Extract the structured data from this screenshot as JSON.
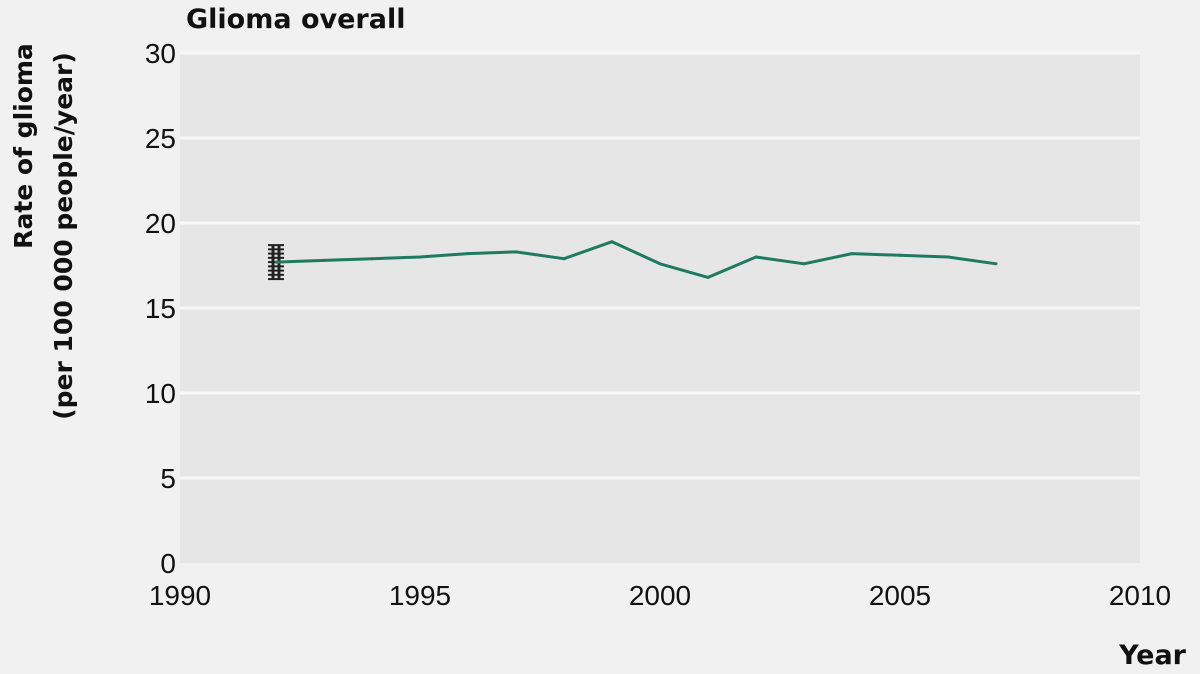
{
  "chart_data": {
    "type": "line",
    "title": "Glioma overall",
    "xlabel": "Year",
    "ylabel_line1": "Rate of glioma",
    "ylabel_line2": "(per 100 000 people/year)",
    "xlim": [
      1990,
      2010
    ],
    "ylim": [
      0,
      30
    ],
    "xticks": [
      "1990",
      "1995",
      "2000",
      "2005",
      "2010"
    ],
    "yticks": [
      "0",
      "5",
      "10",
      "15",
      "20",
      "25",
      "30"
    ],
    "grid": true,
    "series": [
      {
        "x": [
          1992,
          1993,
          1994,
          1995,
          1996,
          1997,
          1998,
          1999,
          2000,
          2001,
          2002,
          2003,
          2004,
          2005,
          2006,
          2007
        ],
        "y": [
          17.7,
          17.8,
          17.9,
          18.0,
          18.2,
          18.3,
          17.9,
          18.9,
          17.6,
          16.8,
          18.0,
          17.6,
          18.2,
          18.1,
          18.0,
          17.6
        ]
      }
    ],
    "error_bar": {
      "x": 1992,
      "low": 16.7,
      "high": 18.7
    },
    "colors": {
      "line": "#1f7a60",
      "plot_background": "#e6e6e6",
      "gridline": "#f8f8f8",
      "error_bar": "#222222"
    }
  }
}
